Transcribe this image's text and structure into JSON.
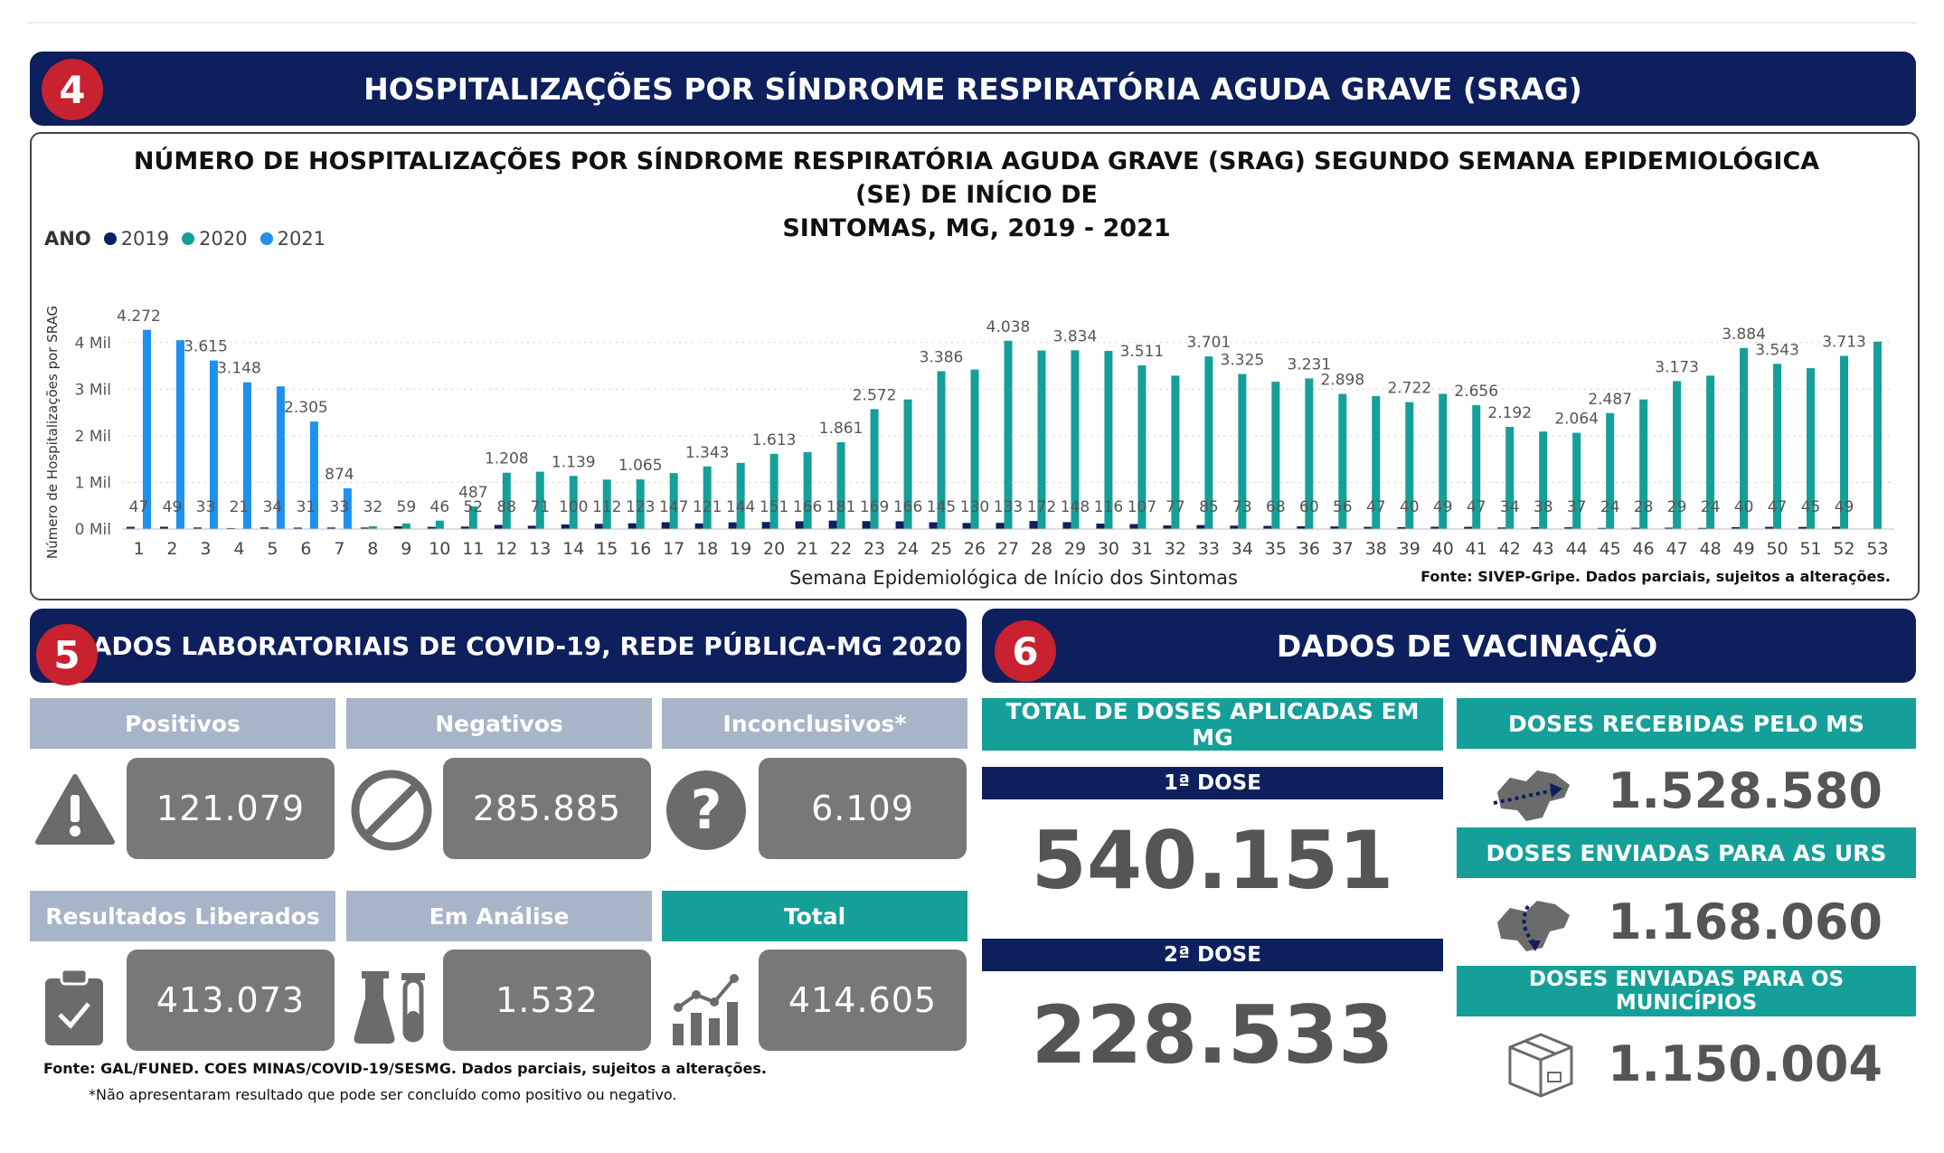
{
  "section4": {
    "number": "4",
    "title": "HOSPITALIZAÇÕES POR SÍNDROME RESPIRATÓRIA AGUDA GRAVE (SRAG)"
  },
  "chart": {
    "title_line1": "NÚMERO DE HOSPITALIZAÇÕES POR SÍNDROME RESPIRATÓRIA AGUDA GRAVE (SRAG) SEGUNDO SEMANA EPIDEMIOLÓGICA (SE) DE INÍCIO DE",
    "title_line2": "SINTOMAS, MG, 2019 - 2021",
    "legend_title": "ANO",
    "source": "Fonte: SIVEP-Gripe. Dados parciais, sujeitos a alterações."
  },
  "chart_data": {
    "type": "bar",
    "title": "NÚMERO DE HOSPITALIZAÇÕES POR SÍNDROME RESPIRATÓRIA AGUDA GRAVE (SRAG) SEGUNDO SEMANA EPIDEMIOLÓGICA (SE) DE INÍCIO DE SINTOMAS, MG, 2019 - 2021",
    "xlabel": "Semana Epidemiológica de Início dos Sintomas",
    "ylabel": "Número de Hospitalizações por SRAG",
    "ylim": [
      0,
      4500
    ],
    "yticks": [
      0,
      1000,
      2000,
      3000,
      4000
    ],
    "ytick_labels": [
      "0 Mil",
      "1 Mil",
      "2 Mil",
      "3 Mil",
      "4 Mil"
    ],
    "grid": true,
    "legend_position": "top-left",
    "categories": [
      "1",
      "2",
      "3",
      "4",
      "5",
      "6",
      "7",
      "8",
      "9",
      "10",
      "11",
      "12",
      "13",
      "14",
      "15",
      "16",
      "17",
      "18",
      "19",
      "20",
      "21",
      "22",
      "23",
      "24",
      "25",
      "26",
      "27",
      "28",
      "29",
      "30",
      "31",
      "32",
      "33",
      "34",
      "35",
      "36",
      "37",
      "38",
      "39",
      "40",
      "41",
      "42",
      "43",
      "44",
      "45",
      "46",
      "47",
      "48",
      "49",
      "50",
      "51",
      "52",
      "53"
    ],
    "series": [
      {
        "name": "2019",
        "color": "#0d1f5c",
        "values": [
          47,
          49,
          33,
          21,
          34,
          31,
          33,
          32,
          59,
          46,
          52,
          88,
          71,
          100,
          112,
          123,
          147,
          121,
          144,
          151,
          166,
          181,
          169,
          166,
          145,
          130,
          133,
          172,
          148,
          116,
          107,
          77,
          85,
          73,
          68,
          60,
          56,
          47,
          40,
          49,
          47,
          34,
          38,
          37,
          24,
          28,
          29,
          24,
          40,
          47,
          45,
          49,
          null
        ],
        "labels": [
          "47",
          "49",
          "33",
          "21",
          "34",
          "31",
          "33",
          "32",
          "59",
          "46",
          "52",
          "88",
          "71",
          "100",
          "112",
          "123",
          "147",
          "121",
          "144",
          "151",
          "166",
          "181",
          "169",
          "166",
          "145",
          "130",
          "133",
          "172",
          "148",
          "116",
          "107",
          "77",
          "85",
          "73",
          "68",
          "60",
          "56",
          "47",
          "40",
          "49",
          "47",
          "34",
          "38",
          "37",
          "24",
          "28",
          "29",
          "24",
          "40",
          "47",
          "45",
          "49",
          ""
        ]
      },
      {
        "name": "2020",
        "color": "#14a098",
        "values": [
          null,
          null,
          null,
          null,
          null,
          null,
          null,
          60,
          120,
          180,
          487,
          1208,
          1230,
          1139,
          1060,
          1065,
          1200,
          1343,
          1420,
          1613,
          1650,
          1861,
          2572,
          2780,
          3386,
          3420,
          4038,
          3830,
          3834,
          3820,
          3511,
          3290,
          3701,
          3325,
          3160,
          3231,
          2898,
          2850,
          2722,
          2900,
          2656,
          2192,
          2090,
          2064,
          2487,
          2780,
          3173,
          3290,
          3884,
          3543,
          3450,
          3713,
          4020
        ],
        "labels": [
          "",
          "",
          "",
          "",
          "",
          "",
          "",
          "",
          "",
          "",
          "487",
          "1.208",
          "",
          "1.139",
          "",
          "1.065",
          "",
          "1.343",
          "",
          "1.613",
          "",
          "1.861",
          "2.572",
          "",
          "3.386",
          "",
          "4.038",
          "",
          "3.834",
          "",
          "3.511",
          "",
          "3.701",
          "3.325",
          "",
          "3.231",
          "2.898",
          "",
          "2.722",
          "",
          "2.656",
          "2.192",
          "",
          "2.064",
          "2.487",
          "",
          "3.173",
          "",
          "3.884",
          "3.543",
          "",
          "3.713",
          ""
        ]
      },
      {
        "name": "2021",
        "color": "#1e90f0",
        "values": [
          4272,
          4050,
          3615,
          3148,
          3060,
          2305,
          874,
          null,
          null,
          null,
          null,
          null,
          null,
          null,
          null,
          null,
          null,
          null,
          null,
          null,
          null,
          null,
          null,
          null,
          null,
          null,
          null,
          null,
          null,
          null,
          null,
          null,
          null,
          null,
          null,
          null,
          null,
          null,
          null,
          null,
          null,
          null,
          null,
          null,
          null,
          null,
          null,
          null,
          null,
          null,
          null,
          null,
          null
        ],
        "labels": [
          "4.272",
          "",
          "3.615",
          "3.148",
          "",
          "2.305",
          "874",
          "",
          "",
          "",
          "",
          "",
          "",
          "",
          "",
          "",
          "",
          "",
          "",
          "",
          "",
          "",
          "",
          "",
          "",
          "",
          "",
          "",
          "",
          "",
          "",
          "",
          "",
          "",
          "",
          "",
          "",
          "",
          "",
          "",
          "",
          "",
          "",
          "",
          "",
          "",
          "",
          "",
          "",
          "",
          "",
          "",
          ""
        ]
      }
    ]
  },
  "section5": {
    "number": "5",
    "title": "DADOS LABORATORIAIS DE COVID-19, REDE PÚBLICA-MG 2020",
    "cards": [
      {
        "label": "Positivos",
        "value": "121.079",
        "icon": "warning-icon"
      },
      {
        "label": "Negativos",
        "value": "285.885",
        "icon": "prohibited-icon"
      },
      {
        "label": "Inconclusivos*",
        "value": "6.109",
        "icon": "question-icon"
      },
      {
        "label": "Resultados Liberados",
        "value": "413.073",
        "icon": "clipboard-check-icon"
      },
      {
        "label": "Em Análise",
        "value": "1.532",
        "icon": "lab-flask-icon"
      },
      {
        "label": "Total",
        "value": "414.605",
        "icon": "bar-chart-trend-icon"
      }
    ],
    "source": "Fonte: GAL/FUNED. COES MINAS/COVID-19/SESMG. Dados parciais, sujeitos a alterações.",
    "note": "*Não apresentaram resultado que pode ser concluído como positivo ou negativo."
  },
  "section6": {
    "number": "6",
    "title": "DADOS DE VACINAÇÃO",
    "total_header": "TOTAL DE DOSES APLICADAS EM MG",
    "dose1_label": "1ª DOSE",
    "dose1_value": "540.151",
    "dose2_label": "2ª DOSE",
    "dose2_value": "228.533",
    "received_header": "DOSES RECEBIDAS PELO MS",
    "received_value": "1.528.580",
    "urs_header": "DOSES ENVIADAS PARA AS URS",
    "urs_value": "1.168.060",
    "municipios_header": "DOSES ENVIADAS PARA OS MUNICÍPIOS",
    "municipios_value": "1.150.004",
    "colors": {
      "navy": "#0d1f5c",
      "teal": "#14a098",
      "red": "#c8212f",
      "gray": "#787878"
    }
  }
}
